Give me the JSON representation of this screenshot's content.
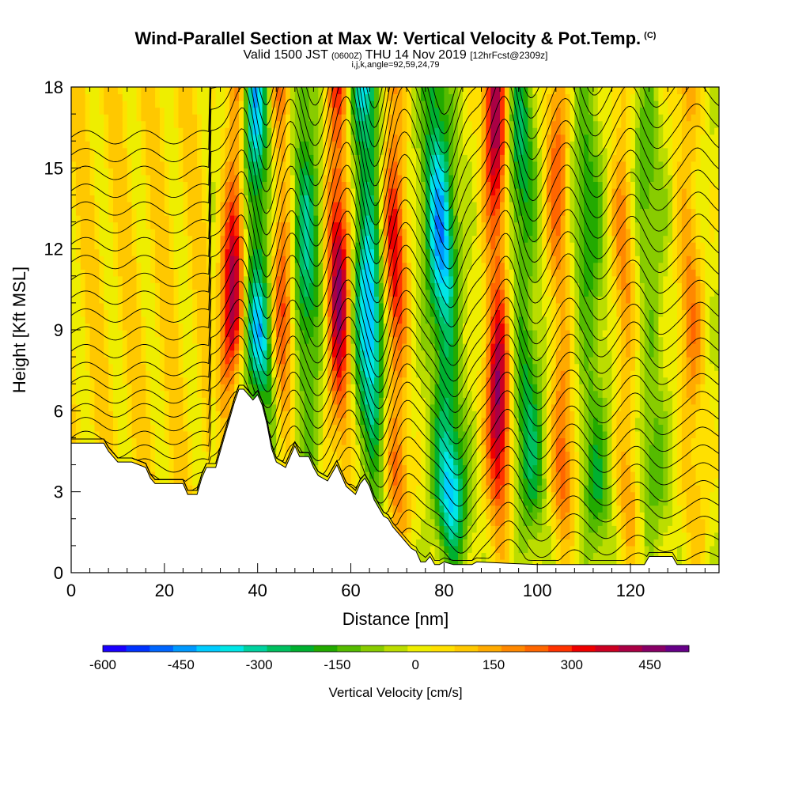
{
  "title": {
    "main": "Wind-Parallel Section at Max W: Vertical Velocity & Pot.Temp.",
    "copyright": "(C)",
    "valid_prefix": "Valid 1500 JST",
    "valid_utc": "(0600Z)",
    "valid_date": "THU 14 Nov 2019",
    "forecast": "[12hrFcst@2309z]",
    "grid_info": "i,j,k,angle=92,59,24,79"
  },
  "chart_data": {
    "type": "heatmap",
    "xlabel": "Distance [nm]",
    "ylabel": "Height [Kft MSL]",
    "xlim": [
      0,
      139
    ],
    "ylim": [
      0,
      18
    ],
    "x_ticks": [
      "0",
      "20",
      "40",
      "60",
      "80",
      "100",
      "120"
    ],
    "x_tick_values": [
      0,
      20,
      40,
      60,
      80,
      100,
      120
    ],
    "y_ticks": [
      "0",
      "3",
      "6",
      "9",
      "12",
      "15",
      "18"
    ],
    "y_tick_values": [
      0,
      3,
      6,
      9,
      12,
      15,
      18
    ],
    "colorbar": {
      "label": "Vertical Velocity [cm/s]",
      "ticks": [
        "-600",
        "-450",
        "-300",
        "-150",
        "0",
        "150",
        "300",
        "450"
      ],
      "tick_values": [
        -600,
        -450,
        -300,
        -150,
        0,
        150,
        300,
        450
      ],
      "range": [
        -600,
        525
      ],
      "colors": [
        "#1a00ff",
        "#0033ff",
        "#0066ff",
        "#0099ff",
        "#00ccff",
        "#00e6e6",
        "#00d2a0",
        "#00c060",
        "#00b030",
        "#22aa00",
        "#55bb00",
        "#88cc00",
        "#bbdd00",
        "#eeee00",
        "#ffe000",
        "#ffc800",
        "#ffaa00",
        "#ff8800",
        "#ff6600",
        "#ff3300",
        "#ee0000",
        "#cc0022",
        "#aa0044",
        "#880066",
        "#660088"
      ]
    },
    "terrain_kft": [
      [
        0,
        4.8
      ],
      [
        7,
        4.8
      ],
      [
        8,
        4.5
      ],
      [
        9,
        4.3
      ],
      [
        10,
        4.1
      ],
      [
        13,
        4.1
      ],
      [
        16,
        3.9
      ],
      [
        17,
        3.5
      ],
      [
        18,
        3.3
      ],
      [
        24,
        3.3
      ],
      [
        25,
        2.9
      ],
      [
        27,
        2.9
      ],
      [
        28,
        3.5
      ],
      [
        29,
        3.9
      ],
      [
        31,
        3.9
      ],
      [
        32,
        4.5
      ],
      [
        33,
        5.1
      ],
      [
        34,
        5.7
      ],
      [
        35,
        6.3
      ],
      [
        36,
        6.8
      ],
      [
        37,
        6.8
      ],
      [
        38,
        6.6
      ],
      [
        39,
        6.4
      ],
      [
        40,
        6.6
      ],
      [
        41,
        6.2
      ],
      [
        42,
        5.5
      ],
      [
        43,
        4.6
      ],
      [
        44,
        4.1
      ],
      [
        46,
        3.9
      ],
      [
        47,
        4.3
      ],
      [
        48,
        4.7
      ],
      [
        49,
        4.3
      ],
      [
        51,
        4.3
      ],
      [
        52,
        3.9
      ],
      [
        53,
        3.6
      ],
      [
        55,
        3.4
      ],
      [
        56,
        3.7
      ],
      [
        57,
        4.0
      ],
      [
        58,
        3.6
      ],
      [
        59,
        3.2
      ],
      [
        61,
        2.9
      ],
      [
        62,
        3.3
      ],
      [
        63,
        3.5
      ],
      [
        64,
        3.2
      ],
      [
        65,
        2.7
      ],
      [
        66,
        2.4
      ],
      [
        67,
        2.1
      ],
      [
        68,
        2.0
      ],
      [
        69,
        1.7
      ],
      [
        70,
        1.5
      ],
      [
        71,
        1.3
      ],
      [
        72,
        1.1
      ],
      [
        73,
        0.9
      ],
      [
        74,
        0.8
      ],
      [
        75,
        0.4
      ],
      [
        76,
        0.4
      ],
      [
        77,
        0.6
      ],
      [
        78,
        0.3
      ],
      [
        79,
        0.3
      ],
      [
        80,
        0.4
      ],
      [
        82,
        0.3
      ],
      [
        86,
        0.3
      ],
      [
        87,
        0.4
      ],
      [
        100,
        0.3
      ],
      [
        123,
        0.3
      ],
      [
        124,
        0.6
      ],
      [
        129,
        0.6
      ],
      [
        130,
        0.3
      ],
      [
        139,
        0.3
      ]
    ],
    "wave_bands": [
      {
        "kind": "updraft",
        "peak_cm_s": 450,
        "x_bottom": 33,
        "x_top": 36
      },
      {
        "kind": "downdraft",
        "peak_cm_s": -450,
        "x_bottom": 41,
        "x_top": 39
      },
      {
        "kind": "updraft",
        "peak_cm_s": 300,
        "x_bottom": 46,
        "x_top": 45
      },
      {
        "kind": "downdraft",
        "peak_cm_s": -300,
        "x_bottom": 51,
        "x_top": 50
      },
      {
        "kind": "updraft",
        "peak_cm_s": 450,
        "x_bottom": 58,
        "x_top": 57
      },
      {
        "kind": "downdraft",
        "peak_cm_s": -450,
        "x_bottom": 65,
        "x_top": 63
      },
      {
        "kind": "updraft",
        "peak_cm_s": 350,
        "x_bottom": 70,
        "x_top": 69
      },
      {
        "kind": "downdraft",
        "peak_cm_s": -450,
        "x_bottom": 82,
        "x_top": 78
      },
      {
        "kind": "updraft",
        "peak_cm_s": 450,
        "x_bottom": 92,
        "x_top": 91
      },
      {
        "kind": "downdraft",
        "peak_cm_s": -250,
        "x_bottom": 99,
        "x_top": 96
      },
      {
        "kind": "updraft",
        "peak_cm_s": 250,
        "x_bottom": 106,
        "x_top": 104
      },
      {
        "kind": "downdraft",
        "peak_cm_s": -200,
        "x_bottom": 113,
        "x_top": 110
      },
      {
        "kind": "updraft",
        "peak_cm_s": 200,
        "x_bottom": 120,
        "x_top": 118
      },
      {
        "kind": "downdraft",
        "peak_cm_s": -150,
        "x_bottom": 125,
        "x_top": 123
      },
      {
        "kind": "updraft",
        "peak_cm_s": 200,
        "x_bottom": 134,
        "x_top": 132
      }
    ],
    "isentropes": {
      "count": 28,
      "contour_color": "#000000"
    }
  }
}
